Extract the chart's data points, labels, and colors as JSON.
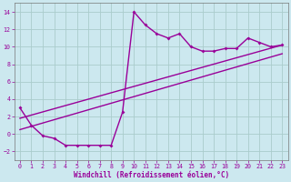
{
  "bg_color": "#cce8ef",
  "grid_color": "#aacccc",
  "line_color": "#990099",
  "xlim": [
    -0.5,
    23.5
  ],
  "ylim": [
    -3,
    15
  ],
  "xticks": [
    0,
    1,
    2,
    3,
    4,
    5,
    6,
    7,
    8,
    9,
    10,
    11,
    12,
    13,
    14,
    15,
    16,
    17,
    18,
    19,
    20,
    21,
    22,
    23
  ],
  "yticks": [
    -2,
    0,
    2,
    4,
    6,
    8,
    10,
    12,
    14
  ],
  "curve_x": [
    0,
    1,
    2,
    3,
    4,
    5,
    6,
    7,
    8,
    9,
    10,
    11,
    12,
    13,
    14,
    15,
    16,
    17,
    18,
    19,
    20,
    21,
    22,
    23
  ],
  "curve_y": [
    3,
    1,
    -0.2,
    -0.5,
    -1.3,
    -1.3,
    -1.3,
    -1.3,
    -1.3,
    2.5,
    14.0,
    12.5,
    11.5,
    11.0,
    11.5,
    10.0,
    9.5,
    9.5,
    9.8,
    9.8,
    11.0,
    10.5,
    10.0,
    10.2
  ],
  "line1_x": [
    0,
    23
  ],
  "line1_y": [
    0.5,
    9.2
  ],
  "line2_x": [
    0,
    23
  ],
  "line2_y": [
    1.8,
    10.2
  ],
  "xlabel": "Windchill (Refroidissement éolien,°C)",
  "xlabel_fontsize": 5.5,
  "tick_fontsize": 4.8,
  "marker": "D",
  "markersize": 2.0,
  "linewidth": 1.0
}
